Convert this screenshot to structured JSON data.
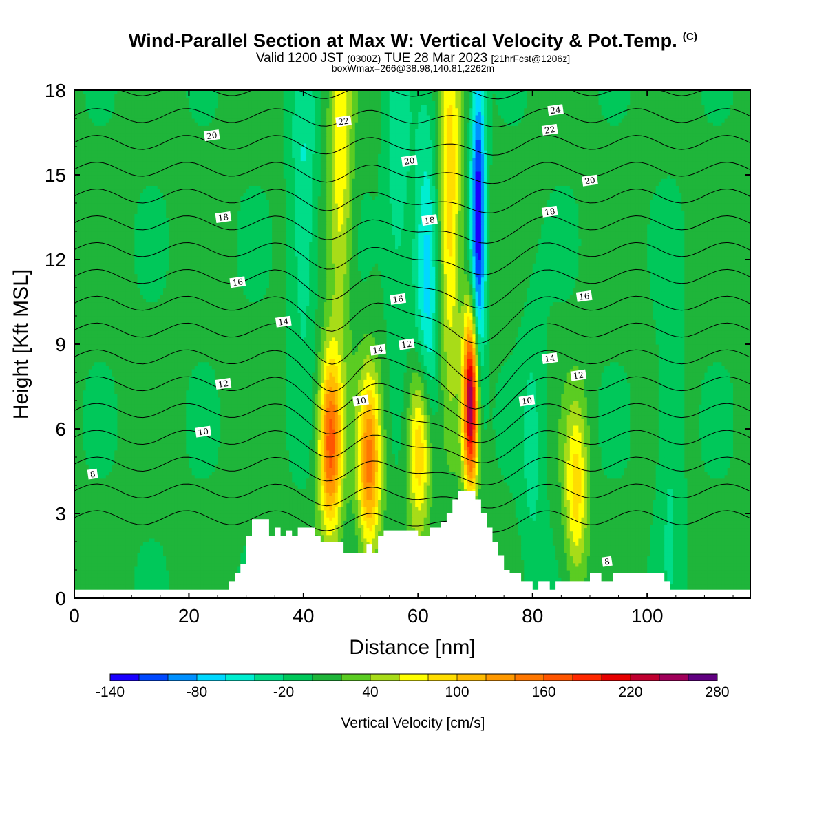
{
  "header": {
    "title": "Wind-Parallel Section at Max W: Vertical Velocity & Pot.Temp.",
    "title_mark": "(C)",
    "valid_a": "Valid 1200 JST",
    "valid_utc": "(0300Z)",
    "valid_b": "TUE 28 Mar 2023",
    "valid_fcst": "[21hrFcst@1206z]",
    "box_info": "boxWmax=266@38.98,140.81,2262m"
  },
  "chart_data": {
    "type": "heatmap",
    "xlabel": "Distance [nm]",
    "ylabel": "Height [Kft MSL]",
    "xlim": [
      0,
      118
    ],
    "ylim": [
      0,
      18
    ],
    "x_ticks": [
      0,
      20,
      40,
      60,
      80,
      100
    ],
    "y_ticks": [
      0,
      3,
      6,
      9,
      12,
      15,
      18
    ],
    "grid": false,
    "colorbar": {
      "label": "Vertical Velocity [cm/s]",
      "tick_labels": [
        "-140",
        "-80",
        "-20",
        "40",
        "100",
        "160",
        "220",
        "280"
      ],
      "levels": [
        -140,
        -120,
        -100,
        -80,
        -60,
        -40,
        -20,
        0,
        20,
        40,
        60,
        80,
        100,
        120,
        140,
        160,
        180,
        200,
        220,
        240,
        260,
        280
      ],
      "colors": [
        "#1a00ff",
        "#0048ff",
        "#0090ff",
        "#00d8ff",
        "#00eed0",
        "#00dd88",
        "#00c85a",
        "#1fb53a",
        "#5bcc22",
        "#a8dc18",
        "#ffff00",
        "#ffdd00",
        "#ffbb00",
        "#ff9900",
        "#ff7700",
        "#ff5500",
        "#ff2800",
        "#e60000",
        "#c00030",
        "#a0005a",
        "#600080"
      ]
    },
    "background_value": 5,
    "updrafts": [
      {
        "x": 44.7,
        "z": 5.5,
        "peak": 165
      },
      {
        "x": 51.5,
        "z": 4.8,
        "peak": 140
      },
      {
        "x": 60.3,
        "z": 5.5,
        "peak": 115
      },
      {
        "x": 65.5,
        "z": 14.0,
        "peak": 95
      },
      {
        "x": 69.2,
        "z": 7.0,
        "peak": 250
      },
      {
        "x": 87.6,
        "z": 3.8,
        "peak": 85
      },
      {
        "x": 46.5,
        "z": 15.5,
        "peak": 70
      }
    ],
    "downdrafts": [
      {
        "x": 70.5,
        "z": 13.5,
        "peak": -140
      },
      {
        "x": 61.5,
        "z": 11.0,
        "peak": -80
      },
      {
        "x": 40.0,
        "z": 14.0,
        "peak": -50
      },
      {
        "x": 56.5,
        "z": 15.0,
        "peak": -40
      },
      {
        "x": 80.0,
        "z": 5.0,
        "peak": -30
      },
      {
        "x": 104.0,
        "z": 5.0,
        "peak": -30
      }
    ],
    "terrain_top_ft": [
      [
        0,
        0.3
      ],
      [
        26,
        0.3
      ],
      [
        27,
        0.6
      ],
      [
        28,
        0.9
      ],
      [
        29,
        1.2
      ],
      [
        30,
        2.2
      ],
      [
        31,
        2.8
      ],
      [
        32,
        2.8
      ],
      [
        33,
        2.8
      ],
      [
        34,
        2.2
      ],
      [
        35,
        2.5
      ],
      [
        36,
        2.2
      ],
      [
        37,
        2.4
      ],
      [
        38,
        2.2
      ],
      [
        39,
        2.5
      ],
      [
        40,
        2.5
      ],
      [
        41,
        2.5
      ],
      [
        42,
        2.2
      ],
      [
        43,
        2.0
      ],
      [
        44,
        2.0
      ],
      [
        45,
        2.0
      ],
      [
        46,
        2.0
      ],
      [
        47,
        1.6
      ],
      [
        48,
        1.6
      ],
      [
        49,
        1.6
      ],
      [
        50,
        1.6
      ],
      [
        51,
        1.9
      ],
      [
        52,
        1.6
      ],
      [
        53,
        2.2
      ],
      [
        54,
        2.4
      ],
      [
        55,
        2.4
      ],
      [
        56,
        2.4
      ],
      [
        57,
        2.4
      ],
      [
        58,
        2.4
      ],
      [
        59,
        2.4
      ],
      [
        60,
        2.2
      ],
      [
        61,
        2.2
      ],
      [
        62,
        2.5
      ],
      [
        63,
        2.5
      ],
      [
        64,
        2.7
      ],
      [
        65,
        3.0
      ],
      [
        66,
        3.5
      ],
      [
        67,
        3.8
      ],
      [
        68,
        3.8
      ],
      [
        69,
        3.8
      ],
      [
        70,
        3.5
      ],
      [
        71,
        3.0
      ],
      [
        72,
        2.5
      ],
      [
        73,
        2.0
      ],
      [
        74,
        1.5
      ],
      [
        75,
        1.0
      ],
      [
        76,
        0.9
      ],
      [
        77,
        0.9
      ],
      [
        78,
        0.6
      ],
      [
        79,
        0.6
      ],
      [
        80,
        0.3
      ],
      [
        81,
        0.6
      ],
      [
        82,
        0.6
      ],
      [
        83,
        0.3
      ],
      [
        84,
        0.6
      ],
      [
        85,
        0.6
      ],
      [
        86,
        0.6
      ],
      [
        87,
        0.6
      ],
      [
        88,
        0.6
      ],
      [
        89,
        0.6
      ],
      [
        90,
        0.9
      ],
      [
        91,
        0.9
      ],
      [
        92,
        0.6
      ],
      [
        93,
        0.6
      ],
      [
        94,
        0.9
      ],
      [
        95,
        0.9
      ],
      [
        96,
        0.9
      ],
      [
        97,
        0.9
      ],
      [
        98,
        0.9
      ],
      [
        99,
        0.9
      ],
      [
        100,
        0.9
      ],
      [
        101,
        0.9
      ],
      [
        102,
        0.9
      ],
      [
        103,
        0.6
      ],
      [
        104,
        0.3
      ],
      [
        118,
        0.3
      ]
    ],
    "theta_contour_labels": [
      {
        "text": "8",
        "x": 3.2,
        "z": 4.4
      },
      {
        "text": "10",
        "x": 22.5,
        "z": 5.9
      },
      {
        "text": "12",
        "x": 26,
        "z": 7.6
      },
      {
        "text": "14",
        "x": 36.5,
        "z": 9.8
      },
      {
        "text": "16",
        "x": 28.5,
        "z": 11.2
      },
      {
        "text": "18",
        "x": 26,
        "z": 13.5
      },
      {
        "text": "20",
        "x": 24,
        "z": 16.4
      },
      {
        "text": "22",
        "x": 47,
        "z": 16.9
      },
      {
        "text": "20",
        "x": 58.5,
        "z": 15.5
      },
      {
        "text": "18",
        "x": 62,
        "z": 13.4
      },
      {
        "text": "16",
        "x": 56.5,
        "z": 10.6
      },
      {
        "text": "14",
        "x": 53,
        "z": 8.8
      },
      {
        "text": "12",
        "x": 58,
        "z": 9.0
      },
      {
        "text": "10",
        "x": 50,
        "z": 7.0
      },
      {
        "text": "24",
        "x": 84,
        "z": 17.3
      },
      {
        "text": "22",
        "x": 83,
        "z": 16.6
      },
      {
        "text": "20",
        "x": 90,
        "z": 14.8
      },
      {
        "text": "18",
        "x": 83,
        "z": 13.7
      },
      {
        "text": "16",
        "x": 89,
        "z": 10.7
      },
      {
        "text": "14",
        "x": 83,
        "z": 8.5
      },
      {
        "text": "12",
        "x": 88,
        "z": 7.9
      },
      {
        "text": "10",
        "x": 79,
        "z": 7.0
      },
      {
        "text": "8",
        "x": 93,
        "z": 1.3
      }
    ]
  }
}
